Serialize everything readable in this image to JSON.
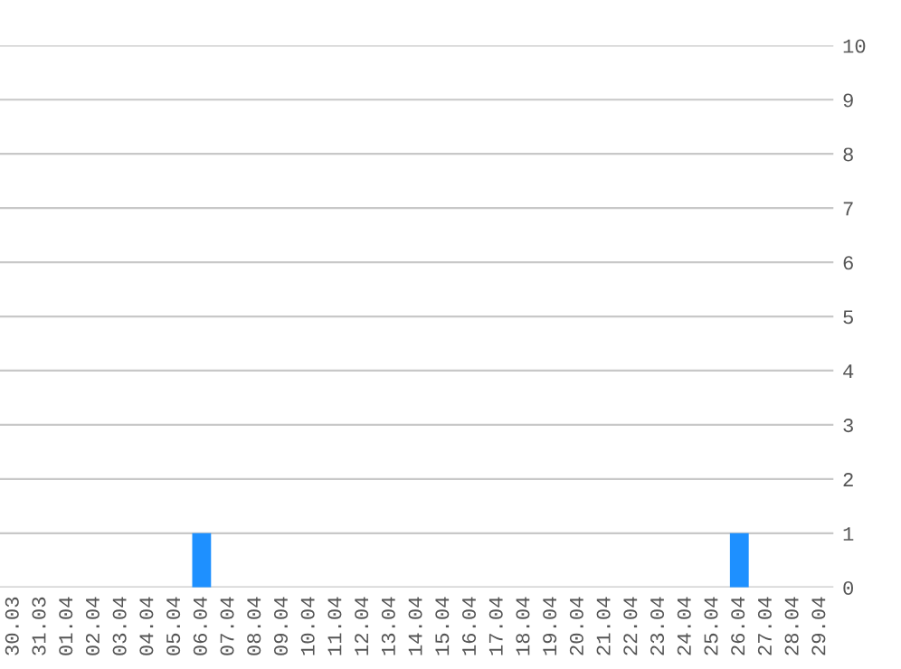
{
  "chart_data": {
    "type": "bar",
    "categories": [
      "30.03",
      "31.03",
      "01.04",
      "02.04",
      "03.04",
      "04.04",
      "05.04",
      "06.04",
      "07.04",
      "08.04",
      "09.04",
      "10.04",
      "11.04",
      "12.04",
      "13.04",
      "14.04",
      "15.04",
      "16.04",
      "17.04",
      "18.04",
      "19.04",
      "20.04",
      "21.04",
      "22.04",
      "23.04",
      "24.04",
      "25.04",
      "26.04",
      "27.04",
      "28.04",
      "29.04"
    ],
    "values": [
      0,
      0,
      0,
      0,
      0,
      0,
      0,
      1,
      0,
      0,
      0,
      0,
      0,
      0,
      0,
      0,
      0,
      0,
      0,
      0,
      0,
      0,
      0,
      0,
      0,
      0,
      0,
      1,
      0,
      0,
      0
    ],
    "color": "#1e90ff",
    "ylim": [
      0,
      10
    ],
    "yticks": [
      0,
      1,
      2,
      3,
      4,
      5,
      6,
      7,
      8,
      9,
      10
    ],
    "grid": "y"
  }
}
